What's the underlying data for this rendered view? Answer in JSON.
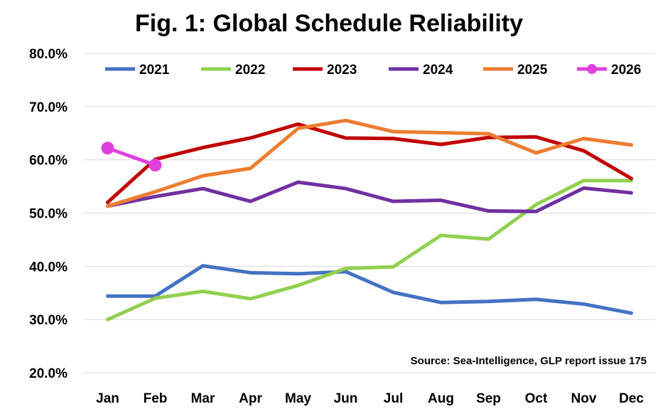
{
  "chart_data": {
    "type": "line",
    "title": "Fig. 1: Global Schedule Reliability",
    "xlabel": "",
    "ylabel": "",
    "categories": [
      "Jan",
      "Feb",
      "Mar",
      "Apr",
      "May",
      "Jun",
      "Jul",
      "Aug",
      "Sep",
      "Oct",
      "Nov",
      "Dec"
    ],
    "ylim": [
      20,
      80
    ],
    "yticks": [
      "20.0%",
      "30.0%",
      "40.0%",
      "50.0%",
      "60.0%",
      "70.0%",
      "80.0%"
    ],
    "grid": true,
    "legend_position": "top",
    "series": [
      {
        "name": "2021",
        "color": "#4472C4",
        "markers": false,
        "values": [
          34.4,
          34.4,
          40.1,
          38.8,
          38.6,
          39.0,
          35.1,
          33.2,
          33.4,
          33.8,
          32.9,
          31.2
        ]
      },
      {
        "name": "2022",
        "color": "#92D050",
        "markers": false,
        "values": [
          30.0,
          34.0,
          35.3,
          33.9,
          36.4,
          39.6,
          39.9,
          45.8,
          45.1,
          51.6,
          56.1,
          56.1
        ]
      },
      {
        "name": "2023",
        "color": "#C00000",
        "markers": false,
        "values": [
          52.0,
          60.1,
          62.3,
          64.1,
          66.7,
          64.1,
          64.0,
          62.9,
          64.2,
          64.3,
          61.7,
          56.5
        ]
      },
      {
        "name": "2024",
        "color": "#7030A0",
        "markers": false,
        "values": [
          51.3,
          53.1,
          54.6,
          52.2,
          55.8,
          54.6,
          52.2,
          52.4,
          50.4,
          50.3,
          54.7,
          53.8
        ]
      },
      {
        "name": "2025",
        "color": "#ED7D31",
        "markers": false,
        "values": [
          51.3,
          54.0,
          57.0,
          58.4,
          65.9,
          67.4,
          65.3,
          65.1,
          64.9,
          61.3,
          64.0,
          62.8
        ]
      },
      {
        "name": "2026",
        "color": "#E040E0",
        "markers": true,
        "values": [
          62.2,
          59.0,
          null,
          null,
          null,
          null,
          null,
          null,
          null,
          null,
          null,
          null
        ]
      }
    ],
    "source": "Source: Sea-Intelligence, GLP report issue 175"
  }
}
